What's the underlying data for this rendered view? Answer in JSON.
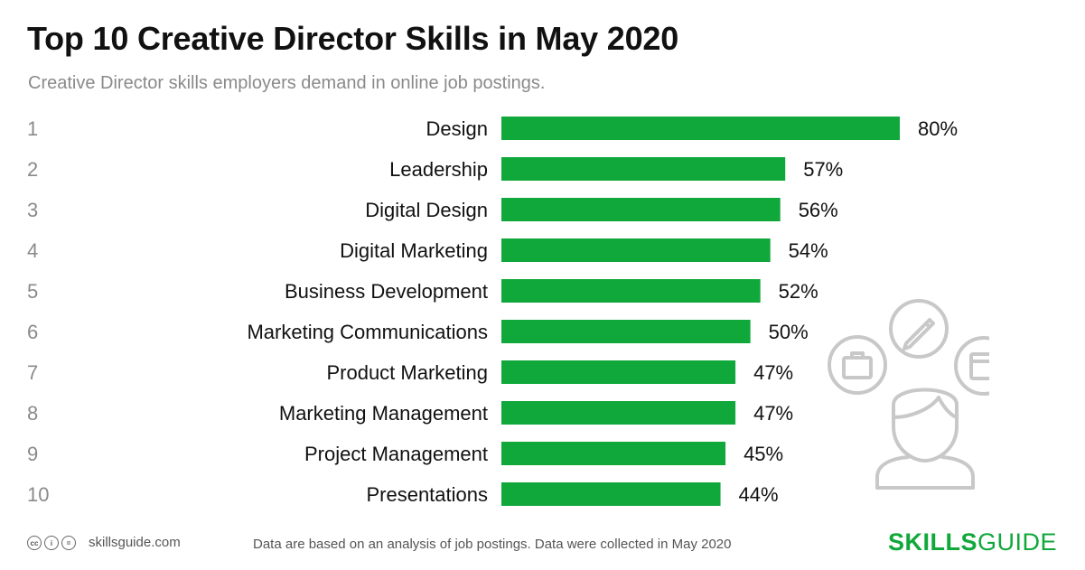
{
  "header": {
    "title": "Top 10 Creative Director Skills in May 2020",
    "subtitle": "Creative Director skills employers demand in online job postings."
  },
  "chart_data": {
    "type": "bar",
    "orientation": "horizontal",
    "ranks": [
      "1",
      "2",
      "3",
      "4",
      "5",
      "6",
      "7",
      "8",
      "9",
      "10"
    ],
    "categories": [
      "Design",
      "Leadership",
      "Digital Design",
      "Digital Marketing",
      "Business Development",
      "Marketing Communications",
      "Product Marketing",
      "Marketing Management",
      "Project Management",
      "Presentations"
    ],
    "values": [
      80,
      57,
      56,
      54,
      52,
      50,
      47,
      47,
      45,
      44
    ],
    "value_suffix": "%",
    "bar_color": "#11a83b",
    "grid": false,
    "legend": false
  },
  "footer": {
    "license_icons": [
      "cc-icon",
      "by-icon",
      "nd-icon"
    ],
    "site": "skillsguide.com",
    "note": "Data are based on an analysis of job postings. Data were collected in May 2020",
    "brand_bold": "SKILLS",
    "brand_light": "GUIDE"
  },
  "illustration": {
    "icons": [
      "person-icon",
      "briefcase-icon",
      "pencil-icon",
      "window-icon"
    ],
    "color": "#c8c8c8"
  }
}
